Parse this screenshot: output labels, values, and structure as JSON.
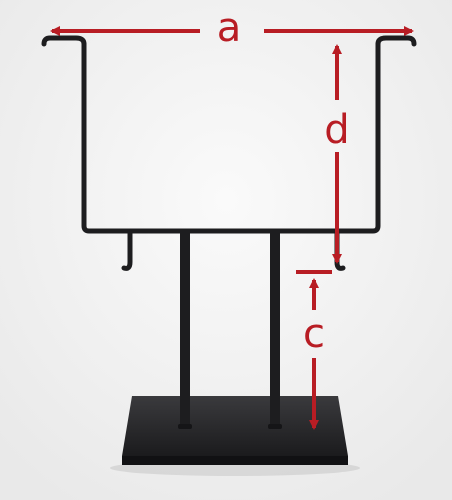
{
  "labels": {
    "a": "a",
    "d": "d",
    "c": "c"
  },
  "colors": {
    "background": "#f4f4f4",
    "stand_metal": "#1d1d1f",
    "dimension_arrows": "#b81d24"
  }
}
